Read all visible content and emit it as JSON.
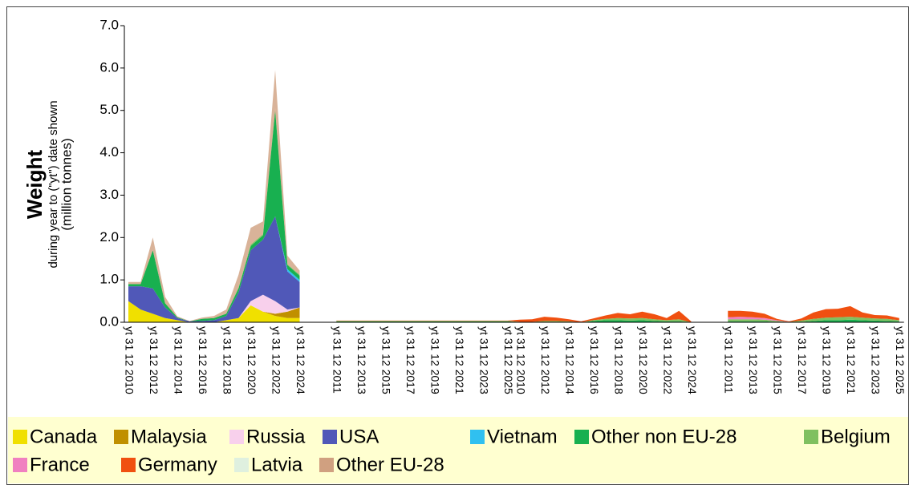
{
  "chart_data": {
    "type": "stacked-area",
    "y_title": "Weight",
    "y_subtitle": "during year to (\"yt\") date shown",
    "y_unit": "(million tonnes)",
    "categories": [
      "yt 31 12 2010",
      null,
      "yt 31 12 2012",
      null,
      "yt 31 12 2014",
      null,
      "yt 31 12 2016",
      null,
      "yt 31 12 2018",
      null,
      "yt 31 12 2020",
      null,
      "yt 31 12 2022",
      null,
      "yt 31 12 2024",
      null,
      null,
      "yt 31 12 2011",
      null,
      "yt 31 12 2013",
      null,
      "yt 31 12 2015",
      null,
      "yt 31 12 2017",
      null,
      "yt 31 12 2019",
      null,
      "yt 31 12 2021",
      null,
      "yt 31 12 2023",
      null,
      "yt 31 12 2025",
      "yt 31 12 2010",
      null,
      "yt 31 12 2012",
      null,
      "yt 31 12 2014",
      null,
      "yt 31 12 2016",
      null,
      "yt 31 12 2018",
      null,
      "yt 31 12 2020",
      null,
      "yt 31 12 2022",
      null,
      "yt 31 12 2024",
      null,
      null,
      "yt 31 12 2011",
      null,
      "yt 31 12 2013",
      null,
      "yt 31 12 2015",
      null,
      "yt 31 12 2017",
      null,
      "yt 31 12 2019",
      null,
      "yt 31 12 2021",
      null,
      "yt 31 12 2023",
      null,
      "yt 31 12 2025"
    ],
    "ylim": [
      0,
      7
    ],
    "yticks": [
      {
        "value": 0,
        "label": "0.0"
      },
      {
        "value": 1,
        "label": "1.0"
      },
      {
        "value": 2,
        "label": "2.0"
      },
      {
        "value": 3,
        "label": "3.0"
      },
      {
        "value": 4,
        "label": "4.0"
      },
      {
        "value": 5,
        "label": "5.0"
      },
      {
        "value": 6,
        "label": "6.0"
      },
      {
        "value": 7,
        "label": "7.0"
      }
    ],
    "series": [
      {
        "name": "Canada",
        "color": "#f0e000",
        "values": [
          0.5,
          0.3,
          0.2,
          0.1,
          0.05,
          0,
          0,
          0,
          0.05,
          0.1,
          0.4,
          0.25,
          0.15,
          0.1,
          0.1,
          null,
          null,
          0,
          0,
          0,
          0,
          0,
          0,
          0,
          0,
          0,
          0,
          0,
          0,
          0,
          0,
          0,
          0,
          0,
          0,
          0,
          0,
          0,
          0,
          0,
          0,
          0,
          0,
          0,
          0,
          0,
          0,
          null,
          null,
          0,
          0,
          0,
          0,
          0,
          0,
          0,
          0,
          0,
          0,
          0,
          0,
          0,
          0,
          0
        ]
      },
      {
        "name": "Malaysia",
        "color": "#c09000",
        "values": [
          0,
          0,
          0,
          0,
          0,
          0,
          0,
          0,
          0,
          0,
          0,
          0,
          0.05,
          0.15,
          0.25,
          null,
          null,
          0,
          0,
          0,
          0,
          0,
          0,
          0,
          0,
          0,
          0,
          0,
          0,
          0,
          0,
          0,
          0,
          0,
          0,
          0,
          0,
          0,
          0,
          0,
          0,
          0,
          0,
          0,
          0,
          0,
          0,
          null,
          null,
          0,
          0,
          0,
          0,
          0,
          0,
          0,
          0,
          0,
          0,
          0,
          0,
          0,
          0,
          0
        ]
      },
      {
        "name": "Russia",
        "color": "#f8d0ec",
        "values": [
          0,
          0,
          0,
          0,
          0,
          0,
          0,
          0,
          0,
          0,
          0.1,
          0.4,
          0.3,
          0.05,
          0,
          null,
          null,
          0,
          0,
          0,
          0,
          0,
          0,
          0,
          0,
          0,
          0,
          0,
          0,
          0,
          0,
          0,
          0,
          0,
          0,
          0,
          0,
          0,
          0,
          0,
          0,
          0,
          0,
          0,
          0,
          0,
          0,
          null,
          null,
          0,
          0,
          0,
          0,
          0,
          0,
          0,
          0,
          0,
          0,
          0,
          0,
          0,
          0,
          0
        ]
      },
      {
        "name": "USA",
        "color": "#5058b8",
        "values": [
          0.35,
          0.55,
          0.6,
          0.25,
          0.05,
          0.02,
          0.03,
          0.05,
          0.1,
          0.6,
          1.2,
          1.3,
          2.0,
          0.9,
          0.6,
          null,
          null,
          0,
          0,
          0,
          0,
          0,
          0,
          0,
          0,
          0,
          0,
          0,
          0,
          0,
          0,
          0,
          0,
          0,
          0,
          0,
          0,
          0,
          0,
          0,
          0,
          0,
          0,
          0,
          0,
          0,
          0,
          null,
          null,
          0,
          0,
          0,
          0,
          0,
          0,
          0,
          0,
          0,
          0,
          0,
          0,
          0,
          0,
          0
        ]
      },
      {
        "name": "Vietnam",
        "color": "#30c0f0",
        "values": [
          0,
          0,
          0,
          0,
          0,
          0,
          0,
          0,
          0,
          0,
          0,
          0,
          0,
          0.05,
          0.05,
          null,
          null,
          0,
          0,
          0,
          0,
          0,
          0,
          0,
          0,
          0,
          0,
          0,
          0,
          0,
          0,
          0,
          0,
          0,
          0,
          0,
          0,
          0,
          0,
          0,
          0,
          0,
          0,
          0,
          0,
          0,
          0,
          null,
          null,
          0,
          0,
          0,
          0,
          0,
          0,
          0,
          0,
          0,
          0,
          0,
          0,
          0,
          0,
          0
        ]
      },
      {
        "name": "Other non EU-28",
        "color": "#18b050",
        "values": [
          0.05,
          0.05,
          0.9,
          0.1,
          0.02,
          0,
          0.05,
          0.05,
          0.05,
          0.1,
          0.1,
          0.1,
          2.5,
          0.1,
          0.1,
          null,
          null,
          0.02,
          0.02,
          0.02,
          0.02,
          0.02,
          0.02,
          0.02,
          0.02,
          0.02,
          0.02,
          0.02,
          0.02,
          0.02,
          0.02,
          0.02,
          0,
          0,
          0.01,
          0.01,
          0.01,
          0,
          0.03,
          0.05,
          0.05,
          0.04,
          0.05,
          0.03,
          0.02,
          0.02,
          0,
          null,
          null,
          0.02,
          0.02,
          0.02,
          0.02,
          0.01,
          0,
          0.01,
          0.03,
          0.05,
          0.05,
          0.06,
          0.05,
          0.04,
          0.03,
          0.02
        ]
      },
      {
        "name": "Belgium",
        "color": "#80c060",
        "values": [
          0,
          0,
          0,
          0,
          0,
          0,
          0,
          0,
          0,
          0.02,
          0.03,
          0.03,
          0.03,
          0.02,
          0.02,
          null,
          null,
          0.01,
          0.01,
          0.01,
          0.01,
          0.01,
          0.01,
          0.01,
          0.01,
          0.01,
          0.01,
          0.01,
          0.01,
          0.01,
          0.01,
          0.01,
          0.01,
          0.01,
          0.02,
          0.02,
          0.01,
          0,
          0.02,
          0.03,
          0.05,
          0.05,
          0.05,
          0.04,
          0.03,
          0.05,
          0,
          null,
          null,
          0.05,
          0.05,
          0.05,
          0.04,
          0.02,
          0.01,
          0.03,
          0.05,
          0.06,
          0.07,
          0.07,
          0.06,
          0.05,
          0.05,
          0.03
        ]
      },
      {
        "name": "France",
        "color": "#f080c0",
        "values": [
          0,
          0,
          0,
          0,
          0,
          0,
          0,
          0,
          0,
          0,
          0,
          0,
          0,
          0,
          0,
          null,
          null,
          0,
          0,
          0,
          0,
          0,
          0,
          0,
          0,
          0,
          0,
          0,
          0,
          0,
          0,
          0,
          0,
          0,
          0,
          0,
          0,
          0,
          0,
          0,
          0,
          0,
          0,
          0,
          0,
          0,
          0,
          null,
          null,
          0.05,
          0.06,
          0.05,
          0.04,
          0.02,
          0,
          0,
          0,
          0,
          0,
          0,
          0,
          0,
          0,
          0
        ]
      },
      {
        "name": "Germany",
        "color": "#f05010",
        "values": [
          0,
          0,
          0,
          0,
          0,
          0,
          0,
          0,
          0,
          0,
          0,
          0,
          0.02,
          0,
          0,
          null,
          null,
          0.01,
          0.01,
          0.01,
          0.01,
          0.01,
          0.01,
          0.01,
          0.01,
          0.01,
          0.01,
          0.01,
          0.01,
          0.01,
          0.01,
          0.01,
          0.05,
          0.06,
          0.1,
          0.08,
          0.05,
          0.02,
          0.04,
          0.08,
          0.12,
          0.1,
          0.15,
          0.12,
          0.05,
          0.2,
          0.02,
          null,
          null,
          0.15,
          0.14,
          0.13,
          0.1,
          0.03,
          0.01,
          0.05,
          0.15,
          0.2,
          0.2,
          0.25,
          0.12,
          0.08,
          0.08,
          0.05
        ]
      },
      {
        "name": "Latvia",
        "color": "#dff0df",
        "values": [
          0,
          0,
          0,
          0,
          0,
          0,
          0,
          0,
          0,
          0,
          0,
          0,
          0,
          0,
          0,
          null,
          null,
          0,
          0,
          0,
          0,
          0,
          0,
          0,
          0,
          0,
          0,
          0,
          0,
          0,
          0,
          0,
          0,
          0,
          0,
          0,
          0,
          0,
          0,
          0,
          0,
          0,
          0,
          0,
          0,
          0,
          0,
          null,
          null,
          0,
          0,
          0,
          0,
          0,
          0,
          0,
          0,
          0,
          0,
          0,
          0,
          0,
          0,
          0
        ]
      },
      {
        "name": "Other EU-28",
        "color": "#d0a080",
        "values": [
          0.05,
          0.05,
          0.3,
          0.15,
          0.02,
          0.01,
          0.03,
          0.05,
          0.1,
          0.3,
          0.4,
          0.3,
          0.9,
          0.2,
          0.1,
          null,
          null,
          0,
          0,
          0,
          0,
          0,
          0,
          0,
          0,
          0,
          0,
          0,
          0,
          0,
          0,
          0,
          0,
          0,
          0,
          0,
          0,
          0,
          0,
          0,
          0,
          0,
          0,
          0,
          0,
          0,
          0,
          null,
          null,
          0,
          0,
          0,
          0,
          0,
          0,
          0,
          0,
          0,
          0,
          0,
          0,
          0,
          0,
          0
        ]
      }
    ]
  }
}
